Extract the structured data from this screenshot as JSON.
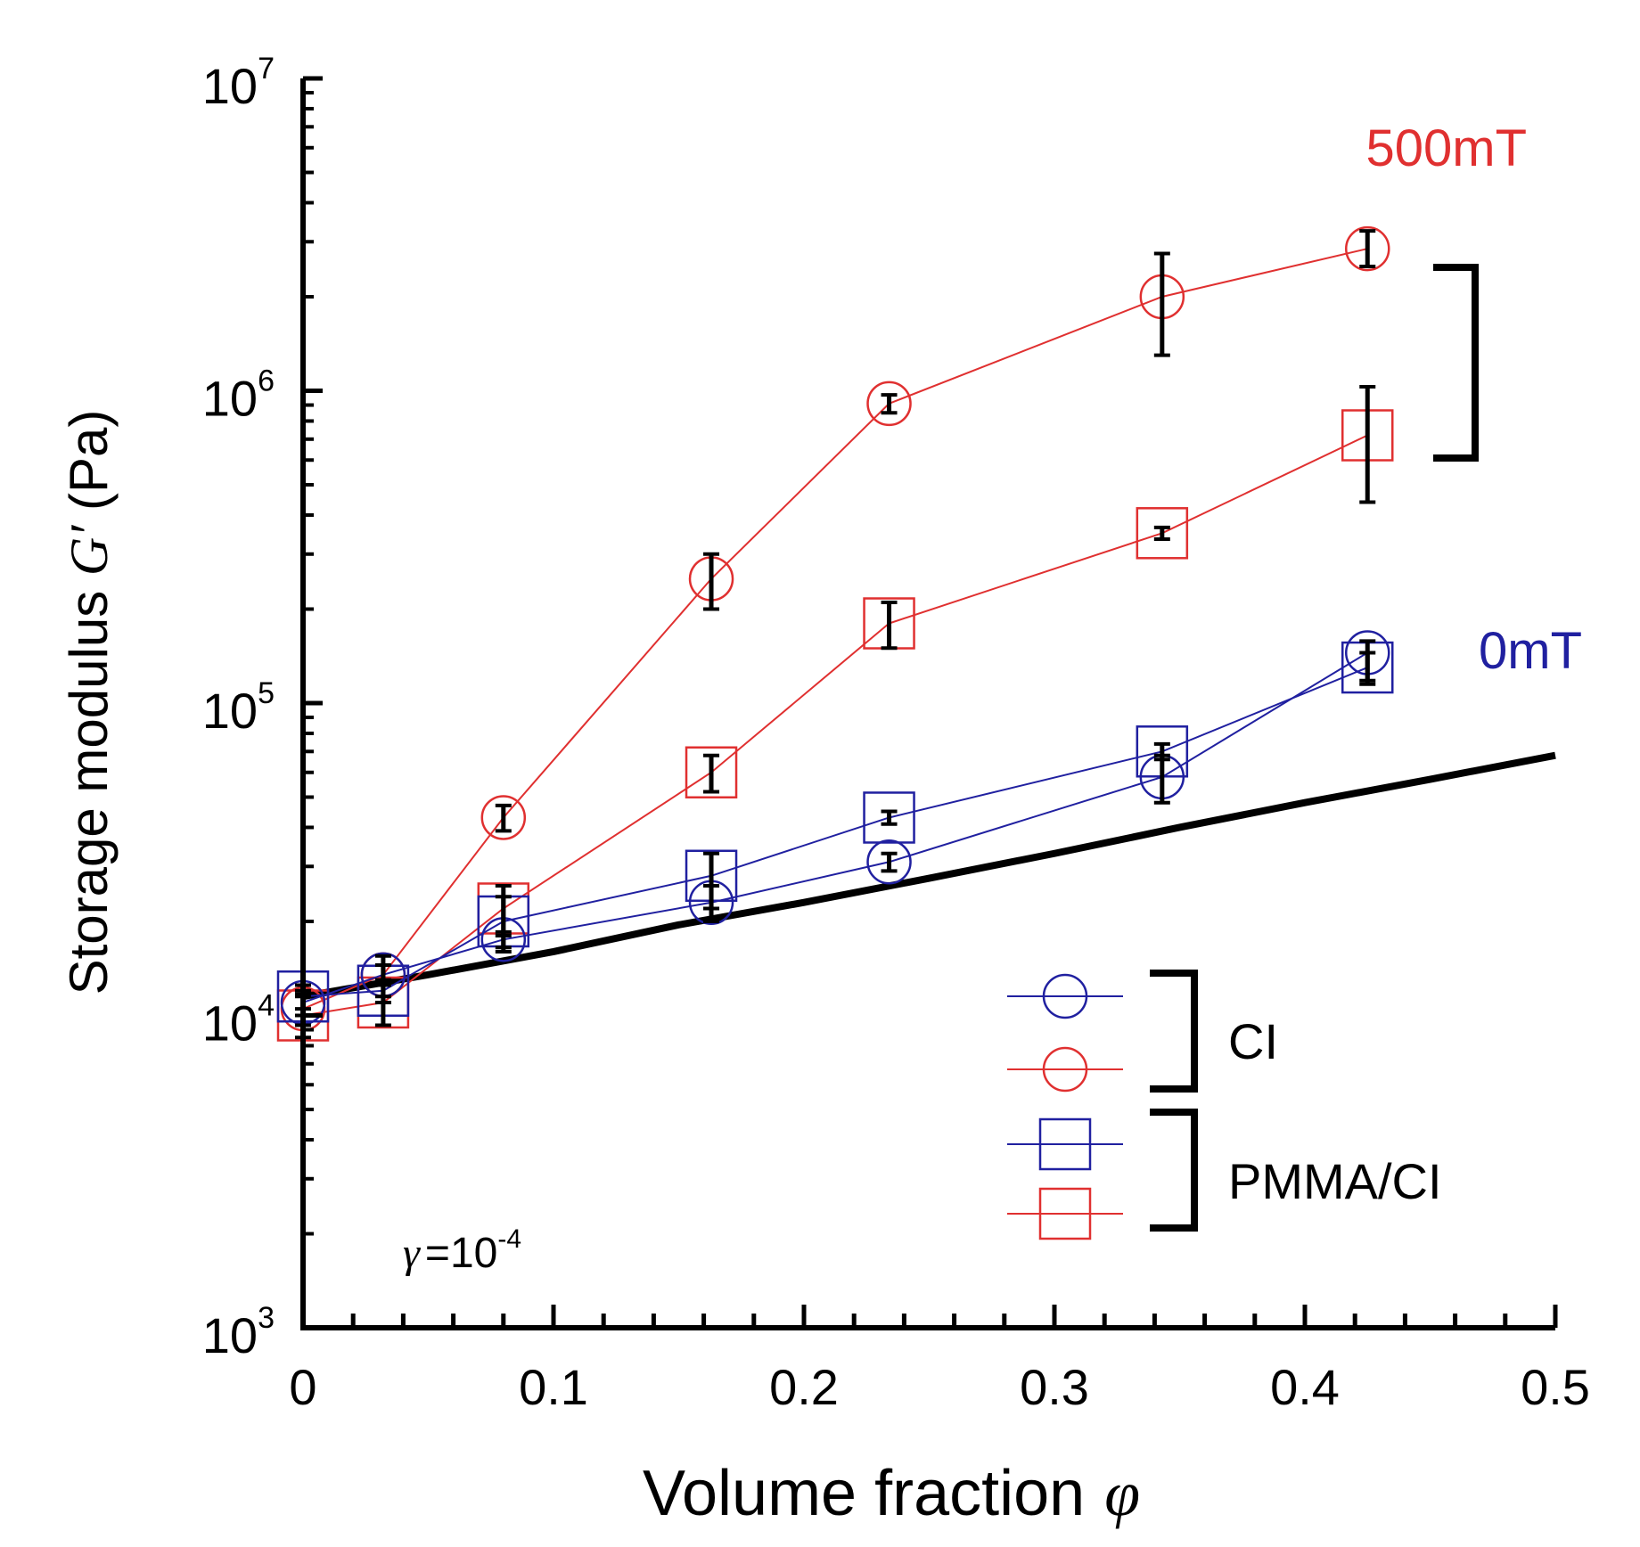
{
  "chart_data": {
    "type": "scatter",
    "title": "",
    "xlabel": "Volume fraction",
    "xlabel_symbol": "φ",
    "ylabel_prefix": "Storage modulus ",
    "ylabel_symbol": "G′",
    "ylabel_unit": " (Pa)",
    "xlim": [
      0,
      0.5
    ],
    "ylim": [
      1000,
      10000000
    ],
    "yscale": "log",
    "x_ticks": [
      0,
      0.1,
      0.2,
      0.3,
      0.4,
      0.5
    ],
    "x_tick_labels": [
      "0",
      "0.1",
      "0.2",
      "0.3",
      "0.4",
      "0.5"
    ],
    "y_ticks": [
      1000,
      10000,
      100000,
      1000000,
      10000000
    ],
    "y_tick_bases": [
      "10",
      "10",
      "10",
      "10",
      "10"
    ],
    "y_tick_exponents": [
      "3",
      "4",
      "5",
      "6",
      "7"
    ],
    "series": [
      {
        "name": "CI 500mT",
        "color": "#e03030",
        "marker": "circle",
        "x": [
          0,
          0.032,
          0.08,
          0.163,
          0.234,
          0.343,
          0.425
        ],
        "y": [
          10500,
          13500,
          43000,
          250000,
          910000,
          2000000,
          2850000
        ],
        "err_low": [
          9300,
          11500,
          39000,
          200000,
          850000,
          1300000,
          2500000
        ],
        "err_high": [
          11700,
          15500,
          47000,
          300000,
          970000,
          2750000,
          3250000
        ]
      },
      {
        "name": "PMMA/CI 500mT",
        "color": "#e03030",
        "marker": "square",
        "x": [
          0,
          0.032,
          0.08,
          0.163,
          0.234,
          0.343,
          0.425
        ],
        "y": [
          10000,
          11000,
          22000,
          60000,
          180000,
          350000,
          720000
        ],
        "err_low": [
          8500,
          9300,
          18000,
          52000,
          150000,
          335000,
          440000
        ],
        "err_high": [
          11500,
          12800,
          26000,
          68000,
          210000,
          365000,
          1030000
        ]
      },
      {
        "name": "CI 0mT",
        "color": "#2020a0",
        "marker": "circle",
        "x": [
          0,
          0.032,
          0.08,
          0.163,
          0.234,
          0.343,
          0.425
        ],
        "y": [
          11000,
          13500,
          17500,
          23000,
          31000,
          58000,
          145000
        ],
        "err_low": [
          10000,
          12500,
          16500,
          20000,
          29000,
          48000,
          118000
        ],
        "err_high": [
          12000,
          14500,
          18500,
          26000,
          33000,
          68000,
          158000
        ]
      },
      {
        "name": "PMMA/CI 0mT",
        "color": "#2020a0",
        "marker": "square",
        "x": [
          0,
          0.032,
          0.08,
          0.163,
          0.234,
          0.343,
          0.425
        ],
        "y": [
          11500,
          12000,
          20000,
          28000,
          43000,
          70000,
          130000
        ],
        "err_low": [
          10500,
          11000,
          16000,
          22000,
          41000,
          66000,
          115000
        ],
        "err_high": [
          12500,
          13000,
          24000,
          33000,
          45000,
          74000,
          145000
        ]
      }
    ],
    "model_curve": {
      "name": "model",
      "color": "#000000",
      "x": [
        0,
        0.05,
        0.1,
        0.15,
        0.2,
        0.25,
        0.3,
        0.35,
        0.4,
        0.45,
        0.5
      ],
      "y": [
        11500,
        13500,
        16000,
        19500,
        23000,
        27500,
        33000,
        40000,
        48000,
        57000,
        68000
      ]
    },
    "annotations": {
      "label_500mT": "500mT",
      "label_0mT": "0mT",
      "strain_symbol": "γ",
      "strain_text": "=10",
      "strain_exp": "-4"
    },
    "legend": {
      "position": "bottom-right",
      "groups": [
        "CI",
        "PMMA/CI"
      ]
    }
  }
}
